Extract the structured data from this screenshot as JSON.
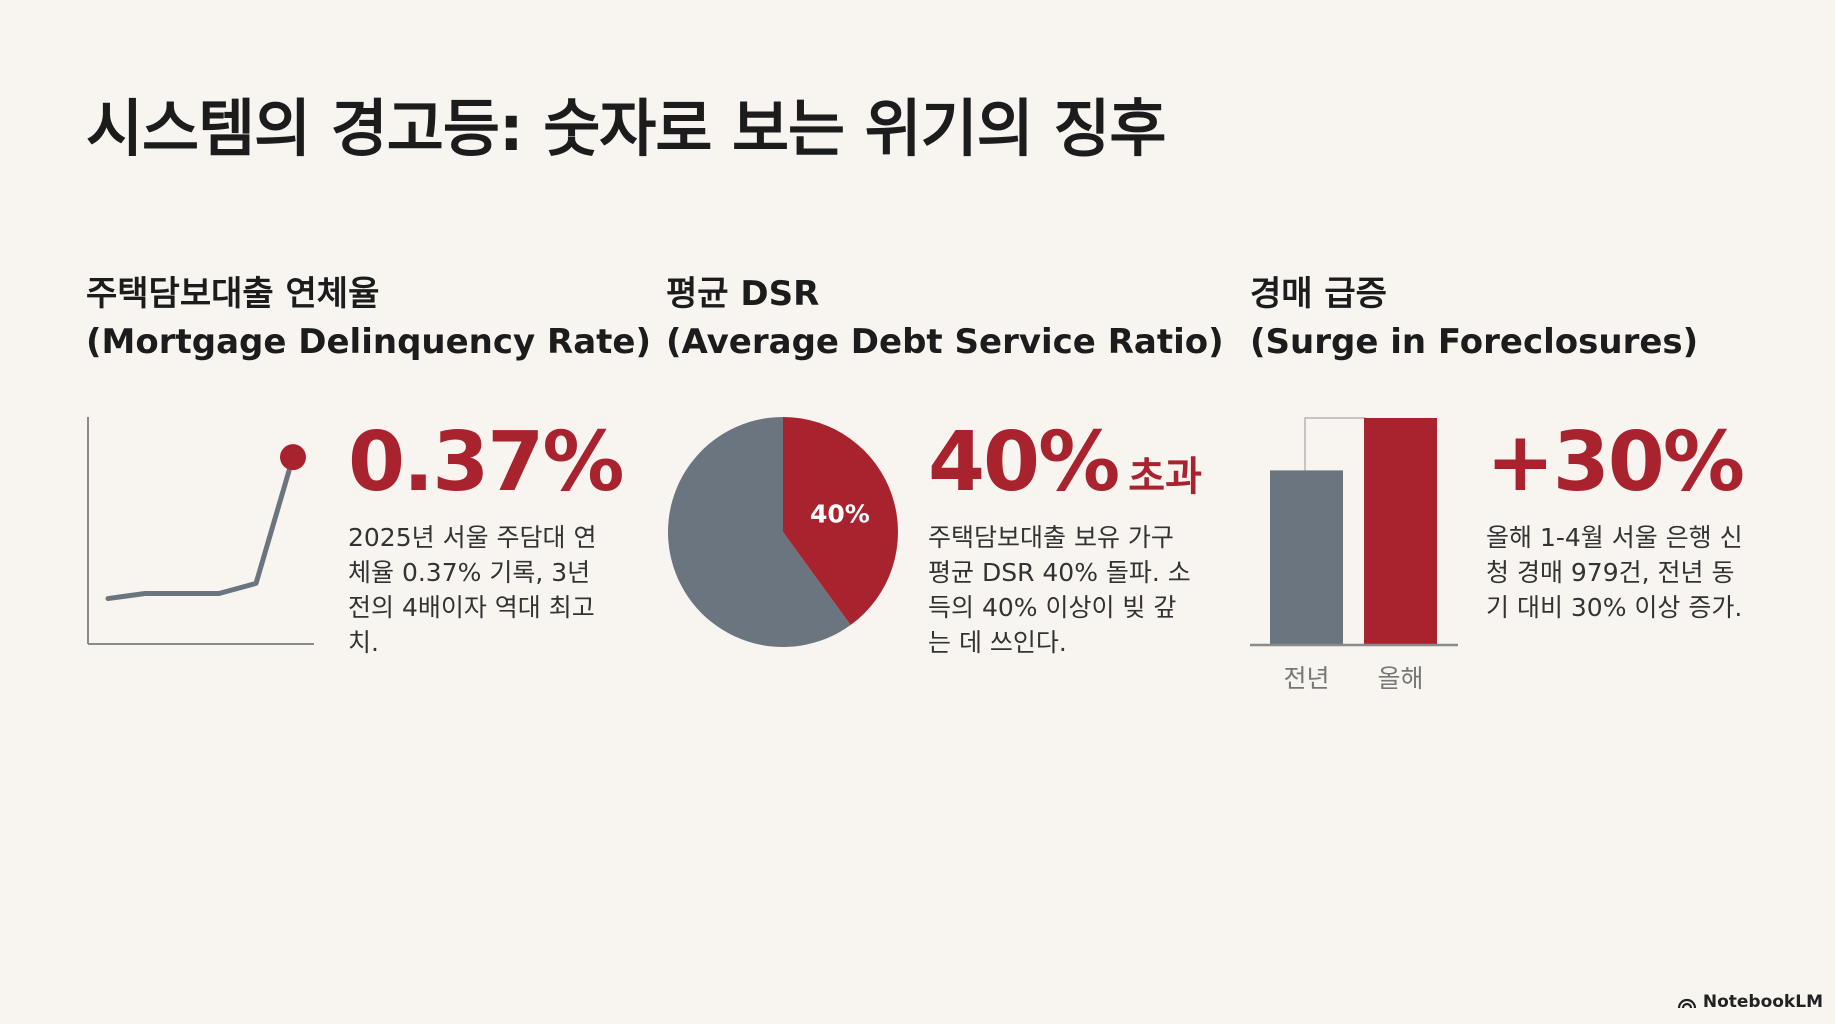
{
  "title": "시스템의 경고등: 숫자로 보는 위기의 징후",
  "panels": [
    {
      "heading_ko": "주택담보대출 연체율",
      "heading_en": "(Mortgage Delinquency Rate)",
      "stat": "0.37%",
      "stat_suffix": "",
      "desc": "2025년 서울 주담대 연체율 0.37% 기록, 3년 전의 4배이자 역대 최고치."
    },
    {
      "heading_ko": "평균 DSR",
      "heading_en": "(Average Debt Service Ratio)",
      "stat": "40%",
      "stat_suffix": "초과",
      "desc": "주택담보대출 보유 가구 평균 DSR 40% 돌파. 소득의 40% 이상이 빚 갚는 데 쓰인다."
    },
    {
      "heading_ko": "경매 급증",
      "heading_en": "(Surge in Foreclosures)",
      "stat": "+30%",
      "stat_suffix": "",
      "desc": "올해 1-4월 서울 은행 신청 경매 979건, 전년 동기 대비 30% 이상 증가."
    }
  ],
  "watermark": "NotebookLM",
  "colors": {
    "accent": "#a8232e",
    "neutral": "#6b7580",
    "axis": "#8a8a8a"
  },
  "chart_data": [
    {
      "type": "line",
      "title": "",
      "values": [
        0.09,
        0.1,
        0.1,
        0.1,
        0.12,
        0.37
      ],
      "highlight_last": true,
      "ylim": [
        0,
        0.4
      ]
    },
    {
      "type": "pie",
      "title": "",
      "slices": [
        {
          "label": "40%",
          "value": 40,
          "color": "#a8232e"
        },
        {
          "label": "",
          "value": 60,
          "color": "#6b7580"
        }
      ]
    },
    {
      "type": "bar",
      "title": "",
      "categories": [
        "전년",
        "올해"
      ],
      "values": [
        100,
        130
      ],
      "colors": [
        "#6b7580",
        "#a8232e"
      ],
      "ylim": [
        0,
        130
      ]
    }
  ]
}
